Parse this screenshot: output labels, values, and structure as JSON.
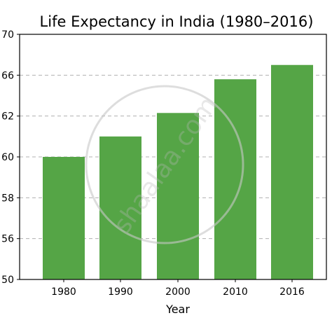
{
  "chart_data": {
    "type": "bar",
    "title": "Life Expectancy in India (1980–2016)",
    "xlabel": "Year",
    "ylabel": "",
    "categories": [
      "1980",
      "1990",
      "2000",
      "2010",
      "2016"
    ],
    "values": [
      60,
      61,
      62.3,
      65.6,
      67
    ],
    "y_tick_labels": [
      "50",
      "56",
      "58",
      "60",
      "62",
      "66",
      "70"
    ],
    "grid": "y dashed",
    "legend": "none",
    "bar_color": "#55a546"
  },
  "watermark": {
    "text": "shaalaa.com"
  }
}
